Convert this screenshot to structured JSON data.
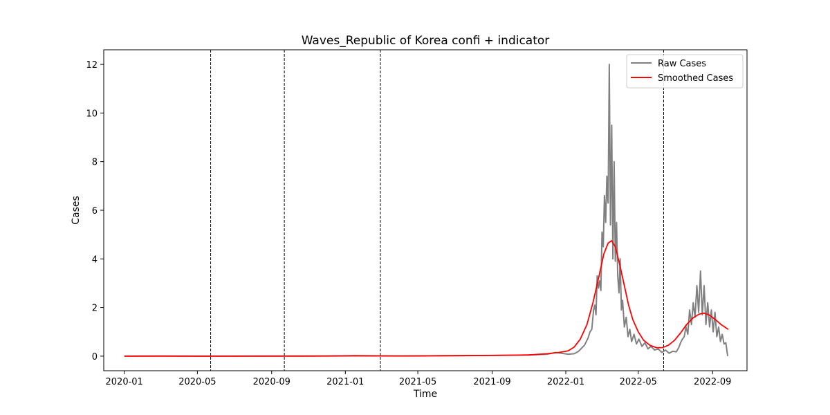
{
  "chart_data": {
    "type": "line",
    "title": "Waves_Republic of Korea confi + indicator",
    "xlabel": "Time",
    "ylabel": "Cases",
    "xlim": [
      "2019-11-28",
      "2022-10-28"
    ],
    "ylim": [
      -0.6,
      12.6
    ],
    "x_ticks": [
      "2020-01",
      "2020-05",
      "2020-09",
      "2021-01",
      "2021-05",
      "2021-09",
      "2022-01",
      "2022-05",
      "2022-09"
    ],
    "y_ticks": [
      0,
      2,
      4,
      6,
      8,
      10,
      12
    ],
    "grid": false,
    "legend": {
      "location": "top-right",
      "entries": [
        {
          "label": "Raw Cases",
          "color": "#808080"
        },
        {
          "label": "Smoothed Cases",
          "color": "#ff0000"
        }
      ]
    },
    "indicator_lines": [
      "2020-05-23",
      "2020-09-22",
      "2021-02-28",
      "2022-06-12"
    ],
    "series": [
      {
        "name": "Raw Cases",
        "color": "#808080",
        "points": [
          [
            "2020-01-01",
            0.0
          ],
          [
            "2020-03-01",
            0.01
          ],
          [
            "2020-05-01",
            0.0
          ],
          [
            "2020-07-01",
            0.0
          ],
          [
            "2020-09-01",
            0.0
          ],
          [
            "2020-11-01",
            0.0
          ],
          [
            "2021-01-01",
            0.01
          ],
          [
            "2021-03-01",
            0.01
          ],
          [
            "2021-05-01",
            0.01
          ],
          [
            "2021-07-01",
            0.02
          ],
          [
            "2021-09-01",
            0.03
          ],
          [
            "2021-11-01",
            0.05
          ],
          [
            "2021-12-01",
            0.08
          ],
          [
            "2021-12-15",
            0.15
          ],
          [
            "2021-12-25",
            0.12
          ],
          [
            "2022-01-05",
            0.08
          ],
          [
            "2022-01-15",
            0.1
          ],
          [
            "2022-01-22",
            0.2
          ],
          [
            "2022-01-28",
            0.35
          ],
          [
            "2022-02-01",
            0.45
          ],
          [
            "2022-02-04",
            0.6
          ],
          [
            "2022-02-07",
            0.75
          ],
          [
            "2022-02-10",
            1.0
          ],
          [
            "2022-02-13",
            1.1
          ],
          [
            "2022-02-16",
            1.9
          ],
          [
            "2022-02-18",
            2.1
          ],
          [
            "2022-02-20",
            1.7
          ],
          [
            "2022-02-22",
            3.3
          ],
          [
            "2022-02-24",
            2.8
          ],
          [
            "2022-02-26",
            3.1
          ],
          [
            "2022-02-28",
            2.7
          ],
          [
            "2022-03-02",
            5.1
          ],
          [
            "2022-03-04",
            4.5
          ],
          [
            "2022-03-06",
            6.6
          ],
          [
            "2022-03-08",
            5.5
          ],
          [
            "2022-03-10",
            7.4
          ],
          [
            "2022-03-12",
            6.3
          ],
          [
            "2022-03-14",
            12.0
          ],
          [
            "2022-03-16",
            5.4
          ],
          [
            "2022-03-18",
            9.5
          ],
          [
            "2022-03-20",
            4.0
          ],
          [
            "2022-03-22",
            8.0
          ],
          [
            "2022-03-24",
            3.9
          ],
          [
            "2022-03-26",
            5.5
          ],
          [
            "2022-03-28",
            3.3
          ],
          [
            "2022-03-30",
            2.6
          ],
          [
            "2022-04-01",
            4.0
          ],
          [
            "2022-04-03",
            1.9
          ],
          [
            "2022-04-05",
            2.3
          ],
          [
            "2022-04-08",
            1.2
          ],
          [
            "2022-04-11",
            1.6
          ],
          [
            "2022-04-14",
            0.8
          ],
          [
            "2022-04-17",
            1.1
          ],
          [
            "2022-04-20",
            0.6
          ],
          [
            "2022-04-24",
            0.9
          ],
          [
            "2022-04-28",
            0.5
          ],
          [
            "2022-05-02",
            0.7
          ],
          [
            "2022-05-07",
            0.4
          ],
          [
            "2022-05-12",
            0.55
          ],
          [
            "2022-05-17",
            0.3
          ],
          [
            "2022-05-22",
            0.4
          ],
          [
            "2022-05-28",
            0.25
          ],
          [
            "2022-06-03",
            0.3
          ],
          [
            "2022-06-09",
            0.15
          ],
          [
            "2022-06-15",
            0.25
          ],
          [
            "2022-06-21",
            0.12
          ],
          [
            "2022-06-27",
            0.2
          ],
          [
            "2022-07-03",
            0.18
          ],
          [
            "2022-07-07",
            0.35
          ],
          [
            "2022-07-10",
            0.55
          ],
          [
            "2022-07-13",
            0.7
          ],
          [
            "2022-07-16",
            0.8
          ],
          [
            "2022-07-19",
            1.2
          ],
          [
            "2022-07-22",
            0.9
          ],
          [
            "2022-07-25",
            1.9
          ],
          [
            "2022-07-28",
            1.3
          ],
          [
            "2022-07-31",
            2.2
          ],
          [
            "2022-08-03",
            1.6
          ],
          [
            "2022-08-06",
            2.9
          ],
          [
            "2022-08-09",
            1.8
          ],
          [
            "2022-08-12",
            3.5
          ],
          [
            "2022-08-15",
            1.7
          ],
          [
            "2022-08-18",
            2.9
          ],
          [
            "2022-08-21",
            1.3
          ],
          [
            "2022-08-24",
            2.2
          ],
          [
            "2022-08-27",
            1.2
          ],
          [
            "2022-08-30",
            1.9
          ],
          [
            "2022-09-02",
            1.0
          ],
          [
            "2022-09-05",
            1.8
          ],
          [
            "2022-09-08",
            0.8
          ],
          [
            "2022-09-11",
            1.2
          ],
          [
            "2022-09-14",
            0.6
          ],
          [
            "2022-09-17",
            0.9
          ],
          [
            "2022-09-20",
            0.5
          ],
          [
            "2022-09-23",
            0.55
          ],
          [
            "2022-09-26",
            0.0
          ]
        ]
      },
      {
        "name": "Smoothed Cases",
        "color": "#ff0000",
        "points": [
          [
            "2020-01-01",
            0.0
          ],
          [
            "2020-06-01",
            0.0
          ],
          [
            "2020-12-01",
            0.01
          ],
          [
            "2021-01-15",
            0.02
          ],
          [
            "2021-04-01",
            0.01
          ],
          [
            "2021-07-01",
            0.02
          ],
          [
            "2021-09-01",
            0.03
          ],
          [
            "2021-11-01",
            0.05
          ],
          [
            "2021-12-01",
            0.1
          ],
          [
            "2021-12-20",
            0.15
          ],
          [
            "2022-01-05",
            0.22
          ],
          [
            "2022-01-15",
            0.38
          ],
          [
            "2022-01-25",
            0.7
          ],
          [
            "2022-02-05",
            1.3
          ],
          [
            "2022-02-15",
            2.2
          ],
          [
            "2022-02-25",
            3.3
          ],
          [
            "2022-03-05",
            4.2
          ],
          [
            "2022-03-12",
            4.65
          ],
          [
            "2022-03-18",
            4.75
          ],
          [
            "2022-03-24",
            4.5
          ],
          [
            "2022-03-31",
            3.8
          ],
          [
            "2022-04-08",
            2.9
          ],
          [
            "2022-04-15",
            2.1
          ],
          [
            "2022-04-22",
            1.5
          ],
          [
            "2022-05-01",
            1.0
          ],
          [
            "2022-05-10",
            0.65
          ],
          [
            "2022-05-20",
            0.45
          ],
          [
            "2022-05-31",
            0.35
          ],
          [
            "2022-06-10",
            0.35
          ],
          [
            "2022-06-20",
            0.45
          ],
          [
            "2022-06-30",
            0.65
          ],
          [
            "2022-07-10",
            0.95
          ],
          [
            "2022-07-20",
            1.3
          ],
          [
            "2022-07-31",
            1.58
          ],
          [
            "2022-08-10",
            1.73
          ],
          [
            "2022-08-18",
            1.77
          ],
          [
            "2022-08-26",
            1.7
          ],
          [
            "2022-09-05",
            1.52
          ],
          [
            "2022-09-15",
            1.3
          ],
          [
            "2022-09-27",
            1.1
          ]
        ]
      }
    ]
  }
}
